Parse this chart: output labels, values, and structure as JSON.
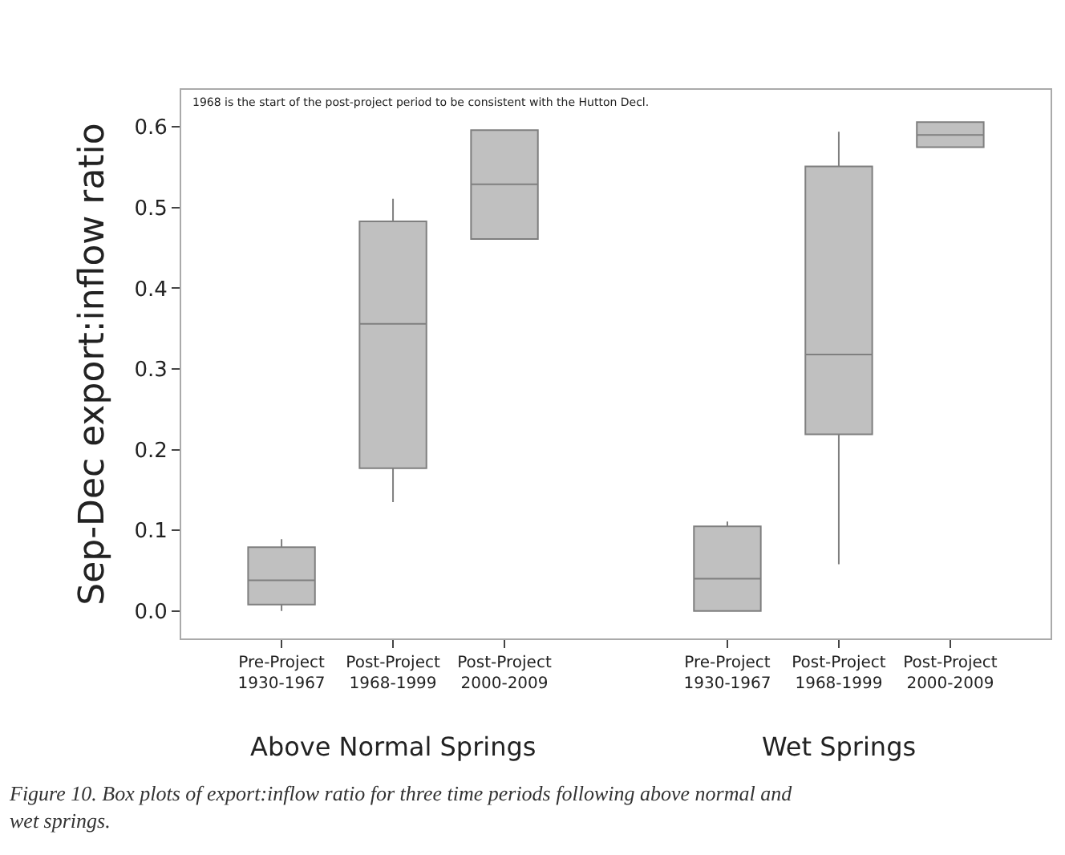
{
  "chart_data": {
    "type": "box",
    "ylabel": "Sep-Dec export:inflow ratio",
    "categories": [
      "Pre-Project\n1930-1967",
      "Post-Project\n1968-1999",
      "Post-Project\n2000-2009",
      "Pre-Project\n1930-1967",
      "Post-Project\n1968-1999",
      "Post-Project\n2000-2009"
    ],
    "boxes": [
      {
        "low": 0.0,
        "q1": 0.008,
        "median": 0.038,
        "q3": 0.079,
        "high": 0.089
      },
      {
        "low": 0.135,
        "q1": 0.177,
        "median": 0.356,
        "q3": 0.483,
        "high": 0.511
      },
      {
        "low": 0.461,
        "q1": 0.461,
        "median": 0.529,
        "q3": 0.596,
        "high": 0.596
      },
      {
        "low": 0.0,
        "q1": 0.0,
        "median": 0.04,
        "q3": 0.105,
        "high": 0.111
      },
      {
        "low": 0.058,
        "q1": 0.219,
        "median": 0.318,
        "q3": 0.551,
        "high": 0.594
      },
      {
        "low": 0.575,
        "q1": 0.575,
        "median": 0.59,
        "q3": 0.606,
        "high": 0.606
      }
    ],
    "color": "#c0c0c0",
    "ylim": [
      -0.034,
      0.646
    ],
    "yticks": [
      {
        "value": 0,
        "label": "0.0"
      },
      0.1,
      0.2,
      0.3,
      0.4,
      0.5,
      0.6
    ],
    "annotations": [
      "1968 is the start of the post-project period to be consistent with the Hutton Decl.",
      "Above Normal Springs",
      "Wet Springs",
      "Figure 10. Box plots of export:inflow ratio for three time periods following above normal and wet springs."
    ]
  }
}
